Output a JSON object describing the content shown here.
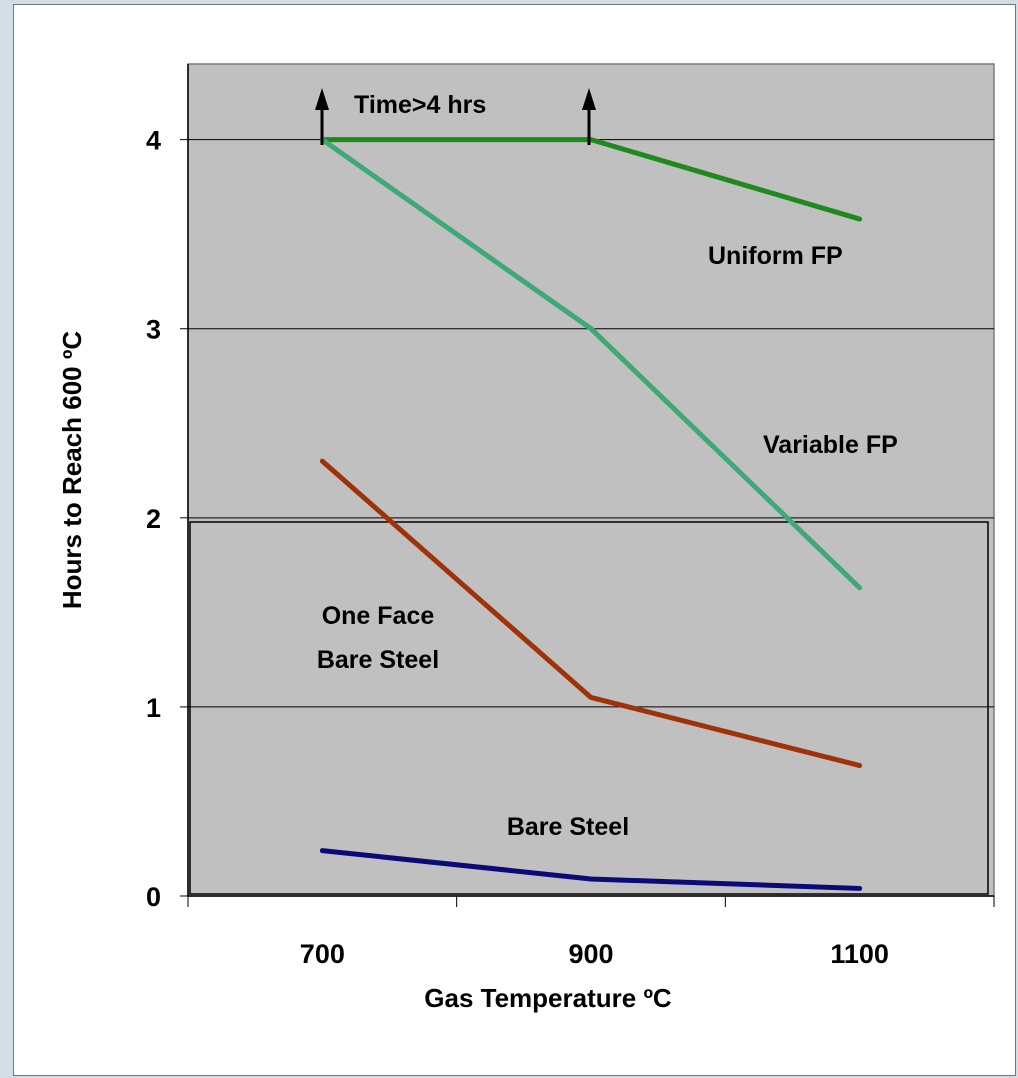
{
  "chart_data": {
    "type": "line",
    "title": "",
    "xlabel": "Gas Temperature ºC",
    "ylabel": "Hours to Reach 600 ºC",
    "categories": [
      "700",
      "900",
      "1100"
    ],
    "yticks": [
      "0",
      "1",
      "2",
      "3",
      "4"
    ],
    "ylim": [
      0,
      4.4
    ],
    "grid": true,
    "plot_background": "#c0c0c0",
    "series": [
      {
        "name": "Uniform FP",
        "color": "#1e8a1e",
        "values": [
          4.0,
          4.0,
          3.58
        ]
      },
      {
        "name": "Variable FP",
        "color": "#3ea876",
        "values": [
          4.0,
          3.0,
          1.63
        ]
      },
      {
        "name": "One Face Bare Steel",
        "color": "#a0320a",
        "values": [
          2.3,
          1.05,
          0.69
        ]
      },
      {
        "name": "Bare Steel",
        "color": "#0a0a78",
        "values": [
          0.24,
          0.09,
          0.04
        ]
      }
    ],
    "annotations": [
      "Time>4 hrs",
      "Uniform FP",
      "Variable FP",
      "One Face",
      "Bare Steel",
      "Bare Steel"
    ]
  }
}
